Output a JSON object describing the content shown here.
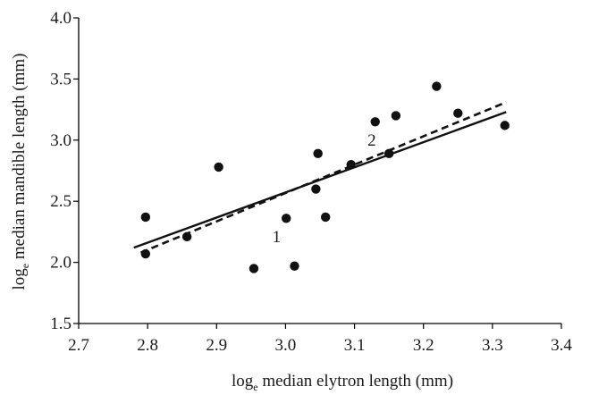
{
  "chart_data": {
    "type": "scatter",
    "title": "",
    "xlabel": {
      "pre": "log",
      "sub": "e",
      "post": " median elytron length (mm)"
    },
    "ylabel": {
      "pre": "log",
      "sub": "e",
      "post": " median mandible length (mm)"
    },
    "xlim": [
      2.7,
      3.4
    ],
    "ylim": [
      1.5,
      4.0
    ],
    "xticks": [
      2.7,
      2.8,
      2.9,
      3.0,
      3.1,
      3.2,
      3.3,
      3.4
    ],
    "yticks": [
      1.5,
      2.0,
      2.5,
      3.0,
      3.5,
      4.0
    ],
    "xtick_labels": [
      "2.7",
      "2.8",
      "2.9",
      "3.0",
      "3.1",
      "3.2",
      "3.3",
      "3.4"
    ],
    "ytick_labels": [
      "1.5",
      "2.0",
      "2.5",
      "3.0",
      "3.5",
      "4.0"
    ],
    "grid": false,
    "points": [
      {
        "x": 2.797,
        "y": 2.37
      },
      {
        "x": 2.797,
        "y": 2.07
      },
      {
        "x": 2.857,
        "y": 2.21
      },
      {
        "x": 2.903,
        "y": 2.78
      },
      {
        "x": 2.954,
        "y": 1.95
      },
      {
        "x": 3.001,
        "y": 2.36
      },
      {
        "x": 3.013,
        "y": 1.97
      },
      {
        "x": 3.044,
        "y": 2.6
      },
      {
        "x": 3.047,
        "y": 2.89
      },
      {
        "x": 3.058,
        "y": 2.37
      },
      {
        "x": 3.095,
        "y": 2.8
      },
      {
        "x": 3.13,
        "y": 3.15
      },
      {
        "x": 3.15,
        "y": 2.89
      },
      {
        "x": 3.16,
        "y": 3.2
      },
      {
        "x": 3.219,
        "y": 3.44
      },
      {
        "x": 3.25,
        "y": 3.22
      },
      {
        "x": 3.318,
        "y": 3.12
      }
    ],
    "lines": [
      {
        "label": "1",
        "style": "solid",
        "x": [
          2.78,
          3.32
        ],
        "y": [
          2.12,
          3.23
        ]
      },
      {
        "label": "2",
        "style": "dashed",
        "x": [
          2.79,
          3.32
        ],
        "y": [
          2.08,
          3.31
        ]
      }
    ],
    "annotations": [
      {
        "text": "1",
        "x": 2.987,
        "y": 2.21
      },
      {
        "text": "2",
        "x": 3.125,
        "y": 3.0
      }
    ]
  }
}
